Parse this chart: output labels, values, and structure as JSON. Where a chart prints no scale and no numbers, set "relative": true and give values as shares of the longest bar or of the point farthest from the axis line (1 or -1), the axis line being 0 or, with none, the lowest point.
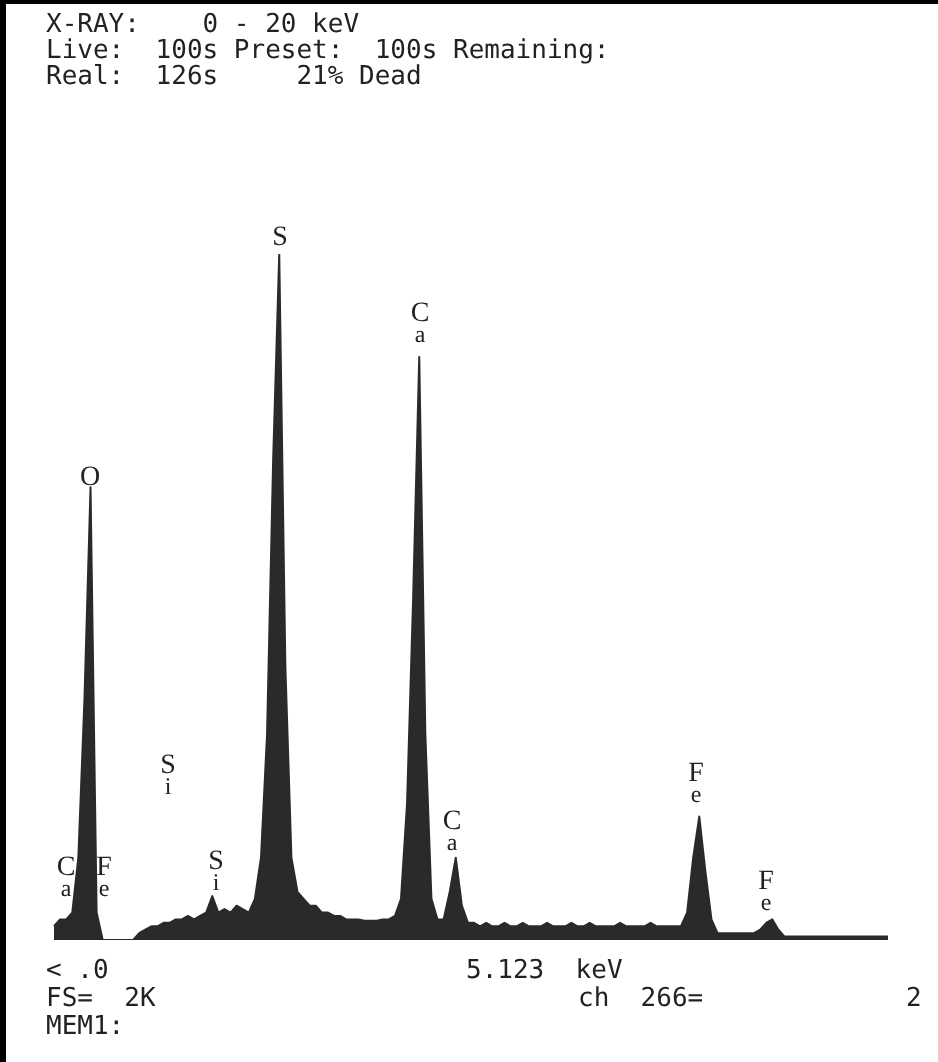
{
  "chart_data": {
    "type": "area",
    "relative": true,
    "legend": false,
    "color": "#2a2a2a",
    "categories": [
      null,
      null,
      null,
      null,
      null,
      null,
      null,
      null,
      null,
      null,
      null,
      null,
      null,
      null,
      null,
      null,
      null,
      null,
      null,
      null,
      null,
      null,
      null,
      null,
      null,
      null,
      null,
      null,
      null,
      null,
      null,
      null,
      null,
      null,
      null,
      null,
      null,
      null,
      null,
      null,
      null,
      null,
      null,
      null,
      null,
      null,
      null,
      null,
      null,
      null,
      null,
      null,
      null,
      null,
      null,
      null,
      null,
      null,
      null,
      null,
      null,
      null,
      null,
      null,
      null,
      null,
      null,
      null,
      null,
      null,
      null,
      null,
      null,
      null,
      null,
      null,
      null,
      null,
      null,
      null,
      null,
      null,
      null,
      null,
      null,
      null,
      null,
      null,
      null,
      null,
      null,
      null,
      null,
      null,
      null,
      null,
      null,
      null,
      null,
      null,
      null,
      null,
      null,
      null,
      null,
      null,
      null,
      null,
      null,
      null,
      null,
      null,
      null,
      null,
      null,
      null,
      null,
      null,
      null,
      null,
      null,
      null,
      null,
      null,
      null,
      null,
      null,
      null,
      null,
      null,
      null,
      null,
      null,
      null,
      null,
      null,
      null,
      null
    ],
    "values": [
      0.02,
      0.03,
      0.03,
      0.04,
      0.12,
      0.35,
      0.66,
      0.04,
      0,
      0,
      0,
      0,
      0,
      0,
      0.01,
      0.015,
      0.02,
      0.02,
      0.025,
      0.025,
      0.03,
      0.03,
      0.035,
      0.03,
      0.035,
      0.04,
      0.064,
      0.04,
      0.045,
      0.04,
      0.05,
      0.045,
      0.04,
      0.06,
      0.12,
      0.3,
      0.7,
      1,
      0.4,
      0.12,
      0.07,
      0.06,
      0.05,
      0.05,
      0.04,
      0.04,
      0.035,
      0.035,
      0.03,
      0.03,
      0.03,
      0.028,
      0.028,
      0.028,
      0.03,
      0.03,
      0.035,
      0.06,
      0.2,
      0.5,
      0.85,
      0.3,
      0.06,
      0.03,
      0.03,
      0.07,
      0.12,
      0.05,
      0.025,
      0.025,
      0.02,
      0.025,
      0.02,
      0.02,
      0.025,
      0.02,
      0.02,
      0.025,
      0.02,
      0.02,
      0.02,
      0.025,
      0.02,
      0.02,
      0.02,
      0.025,
      0.02,
      0.02,
      0.025,
      0.02,
      0.02,
      0.02,
      0.02,
      0.025,
      0.02,
      0.02,
      0.02,
      0.02,
      0.025,
      0.02,
      0.02,
      0.02,
      0.02,
      0.02,
      0.04,
      0.12,
      0.18,
      0.1,
      0.03,
      0.01,
      0.01,
      0.01,
      0.01,
      0.01,
      0.01,
      0.01,
      0.015,
      0.025,
      0.03,
      0.015,
      0.005,
      0.005,
      0.005,
      0.005,
      0.005,
      0.005,
      0.005,
      0.005,
      0.005,
      0.005,
      0.005,
      0.005,
      0.005,
      0.005,
      0.005,
      0.005,
      0.005,
      0.005
    ],
    "annotations": [
      "X-RAY:    0 - 20 keV",
      "Live:  100s Preset:  100s Remaining:",
      "Real:  126s     21% Dead",
      "O",
      "S",
      "Ca",
      "Si",
      "Si",
      "Ca",
      "Ca",
      "Fe",
      "Fe",
      "Fe",
      "< .0",
      "5.123  keV",
      "FS=  2K",
      "ch  266=",
      "2",
      "MEM1:"
    ]
  }
}
